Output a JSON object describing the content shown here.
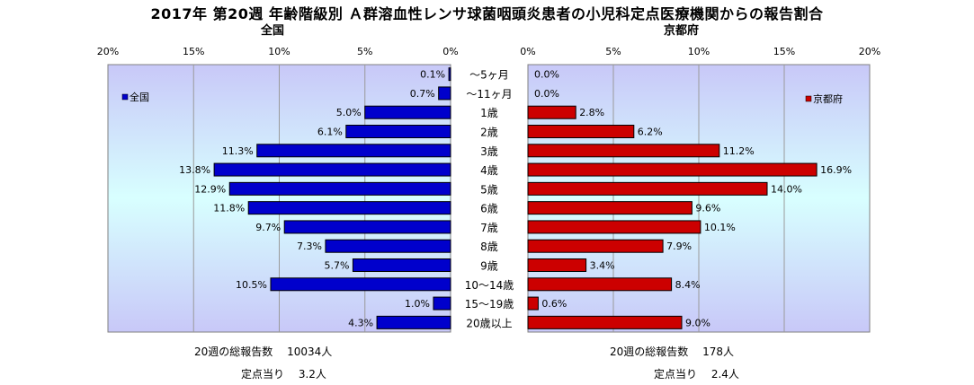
{
  "title": "2017年 第20週 年齢階級別 Ａ群溶血性レンサ球菌咽頭炎患者の小児科定点医療機関からの報告割合",
  "chart_data": [
    {
      "type": "bar",
      "orientation": "horizontal",
      "direction": "reversed",
      "subtitle": "全国",
      "legend": "全国",
      "legend_position": "top-left",
      "color": "#0000cc",
      "xlim": [
        0,
        20
      ],
      "ticks": [
        "20%",
        "15%",
        "10%",
        "5%",
        "0%"
      ],
      "categories": [
        "～5ヶ月",
        "～11ヶ月",
        "1歳",
        "2歳",
        "3歳",
        "4歳",
        "5歳",
        "6歳",
        "7歳",
        "8歳",
        "9歳",
        "10～14歳",
        "15～19歳",
        "20歳以上"
      ],
      "values": [
        0.1,
        0.7,
        5.0,
        6.1,
        11.3,
        13.8,
        12.9,
        11.8,
        9.7,
        7.3,
        5.7,
        10.5,
        1.0,
        4.3
      ],
      "labels": [
        "0.1%",
        "0.7%",
        "5.0%",
        "6.1%",
        "11.3%",
        "13.8%",
        "12.9%",
        "11.8%",
        "9.7%",
        "7.3%",
        "5.7%",
        "10.5%",
        "1.0%",
        "4.3%"
      ]
    },
    {
      "type": "bar",
      "orientation": "horizontal",
      "subtitle": "京都府",
      "legend": "京都府",
      "legend_position": "top-right",
      "color": "#cc0000",
      "xlim": [
        0,
        20
      ],
      "ticks": [
        "0%",
        "5%",
        "10%",
        "15%",
        "20%"
      ],
      "categories": [
        "～5ヶ月",
        "～11ヶ月",
        "1歳",
        "2歳",
        "3歳",
        "4歳",
        "5歳",
        "6歳",
        "7歳",
        "8歳",
        "9歳",
        "10～14歳",
        "15～19歳",
        "20歳以上"
      ],
      "values": [
        0.0,
        0.0,
        2.8,
        6.2,
        11.2,
        16.9,
        14.0,
        9.6,
        10.1,
        7.9,
        3.4,
        8.4,
        0.6,
        9.0
      ],
      "labels": [
        "0.0%",
        "0.0%",
        "2.8%",
        "6.2%",
        "11.2%",
        "16.9%",
        "14.0%",
        "9.6%",
        "10.1%",
        "7.9%",
        "3.4%",
        "8.4%",
        "0.6%",
        "9.0%"
      ]
    }
  ],
  "notes": {
    "left_total": "20週の総報告数　 10034人",
    "left_per": "定点当り　 3.2人",
    "right_total": "20週の総報告数　 178人",
    "right_per": "定点当り　 2.4人"
  }
}
